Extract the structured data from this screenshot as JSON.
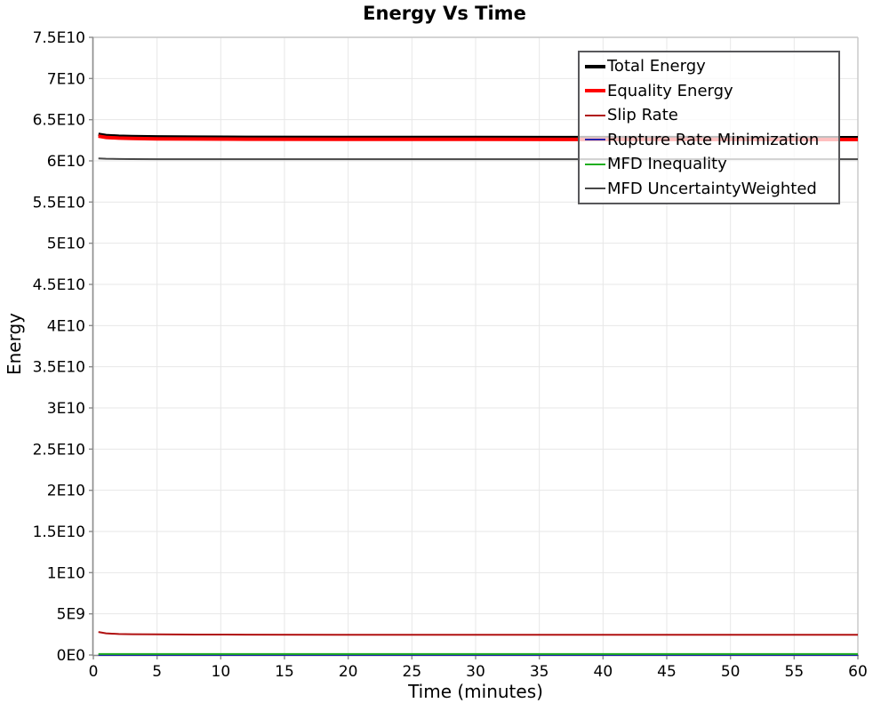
{
  "chart_data": {
    "type": "line",
    "title": "Energy Vs Time",
    "xlabel": "Time (minutes)",
    "ylabel": "Energy",
    "xlim": [
      0,
      60
    ],
    "ylim": [
      0,
      75000000000
    ],
    "grid": true,
    "legend_position": "top-right",
    "x_ticks": [
      0,
      5,
      10,
      15,
      20,
      25,
      30,
      35,
      40,
      45,
      50,
      55,
      60
    ],
    "x_tick_labels": [
      "0",
      "5",
      "10",
      "15",
      "20",
      "25",
      "30",
      "35",
      "40",
      "45",
      "50",
      "55",
      "60"
    ],
    "y_ticks": [
      0,
      5000000000,
      10000000000,
      15000000000,
      20000000000,
      25000000000,
      30000000000,
      35000000000,
      40000000000,
      45000000000,
      50000000000,
      55000000000,
      60000000000,
      65000000000,
      70000000000,
      75000000000
    ],
    "y_tick_labels": [
      "0E0",
      "5E9",
      "1E10",
      "1.5E10",
      "2E10",
      "2.5E10",
      "3E10",
      "3.5E10",
      "4E10",
      "4.5E10",
      "5E10",
      "5.5E10",
      "6E10",
      "6.5E10",
      "7E10",
      "7.5E10"
    ],
    "x_shared": [
      0.4,
      1,
      2,
      3,
      5,
      8,
      12,
      20,
      30,
      45,
      60
    ],
    "series": [
      {
        "name": "Total Energy",
        "color": "#000000",
        "stroke_width": 4,
        "values": [
          63220000000,
          63070000000,
          62980000000,
          62940000000,
          62900000000,
          62870000000,
          62850000000,
          62840000000,
          62830000000,
          62820000000,
          62810000000
        ]
      },
      {
        "name": "Equality Energy",
        "color": "#ff0000",
        "stroke_width": 4,
        "values": [
          63000000000,
          62850000000,
          62760000000,
          62720000000,
          62680000000,
          62650000000,
          62630000000,
          62620000000,
          62610000000,
          62600000000,
          62590000000
        ]
      },
      {
        "name": "Slip Rate",
        "color": "#b01010",
        "stroke_width": 2,
        "values": [
          2800000000,
          2630000000,
          2550000000,
          2520000000,
          2500000000,
          2480000000,
          2470000000,
          2460000000,
          2455000000,
          2450000000,
          2450000000
        ]
      },
      {
        "name": "Rupture Rate Minimization",
        "color": "#2121ad",
        "stroke_width": 2,
        "values": [
          0,
          0,
          0,
          0,
          0,
          0,
          0,
          0,
          0,
          0,
          0
        ]
      },
      {
        "name": "MFD Inequality",
        "color": "#1fae1f",
        "stroke_width": 2,
        "values": [
          120000000,
          120000000,
          120000000,
          120000000,
          120000000,
          120000000,
          120000000,
          120000000,
          120000000,
          120000000,
          120000000
        ]
      },
      {
        "name": "MFD UncertaintyWeighted",
        "color": "#474747",
        "stroke_width": 2,
        "values": [
          60300000000,
          60260000000,
          60230000000,
          60220000000,
          60210000000,
          60200000000,
          60200000000,
          60200000000,
          60200000000,
          60200000000,
          60200000000
        ]
      }
    ]
  },
  "style": {
    "grid_color": "#e7e7e7",
    "plot_border_color": "#c6c6c6",
    "axis_color": "#8c8c8c",
    "text_color": "#000000",
    "legend_border_color": "#58585b"
  }
}
